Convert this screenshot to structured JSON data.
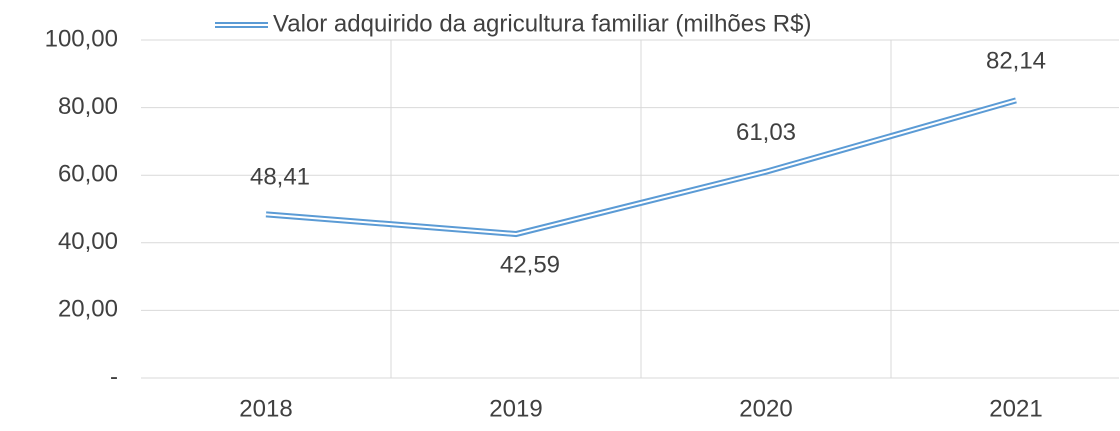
{
  "chart_data": {
    "type": "line",
    "categories": [
      "2018",
      "2019",
      "2020",
      "2021"
    ],
    "series": [
      {
        "name": "Valor adquirido da agricultura familiar (milhões R$)",
        "color": "#5b9bd5",
        "values": [
          48.41,
          42.59,
          61.03,
          82.14
        ],
        "value_labels": [
          "48,41",
          "42,59",
          "61,03",
          "82,14"
        ]
      }
    ],
    "ylim": [
      0,
      100
    ],
    "yticks": [
      {
        "value": 0,
        "label": "-"
      },
      {
        "value": 20,
        "label": "20,00"
      },
      {
        "value": 40,
        "label": "40,00"
      },
      {
        "value": 60,
        "label": "60,00"
      },
      {
        "value": 80,
        "label": "80,00"
      },
      {
        "value": 100,
        "label": "100,00"
      }
    ],
    "grid": true,
    "legend": "top"
  }
}
